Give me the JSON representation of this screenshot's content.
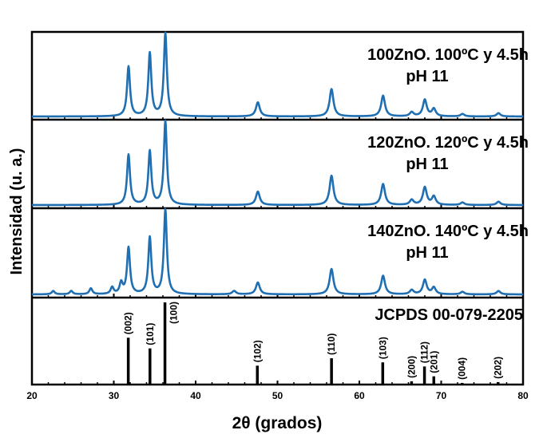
{
  "chart_data": {
    "type": "line",
    "xlabel": "2θ (grados)",
    "ylabel": "Intensidad (u. a.)",
    "xlim": [
      20,
      80
    ],
    "xticks": [
      20,
      30,
      40,
      50,
      60,
      70,
      80
    ],
    "line_color": "#1f6fb2",
    "panels": [
      {
        "title_line1": "100ZnO. 100ºC y 4.5h",
        "title_line2": "pH 11",
        "peaks": [
          {
            "x": 31.8,
            "h": 0.6
          },
          {
            "x": 34.4,
            "h": 0.76
          },
          {
            "x": 36.3,
            "h": 1.0
          },
          {
            "x": 47.6,
            "h": 0.17
          },
          {
            "x": 56.6,
            "h": 0.33
          },
          {
            "x": 62.9,
            "h": 0.25
          },
          {
            "x": 66.4,
            "h": 0.05
          },
          {
            "x": 68.0,
            "h": 0.2
          },
          {
            "x": 69.1,
            "h": 0.09
          },
          {
            "x": 72.6,
            "h": 0.03
          },
          {
            "x": 77.0,
            "h": 0.04
          }
        ]
      },
      {
        "title_line1": "120ZnO. 120ºC y 4.5h",
        "title_line2": "pH 11",
        "peaks": [
          {
            "x": 31.8,
            "h": 0.6
          },
          {
            "x": 34.4,
            "h": 0.64
          },
          {
            "x": 36.3,
            "h": 1.0
          },
          {
            "x": 47.6,
            "h": 0.16
          },
          {
            "x": 56.6,
            "h": 0.35
          },
          {
            "x": 62.9,
            "h": 0.25
          },
          {
            "x": 66.4,
            "h": 0.06
          },
          {
            "x": 68.0,
            "h": 0.21
          },
          {
            "x": 69.1,
            "h": 0.1
          },
          {
            "x": 72.6,
            "h": 0.03
          },
          {
            "x": 77.0,
            "h": 0.04
          }
        ]
      },
      {
        "title_line1": "140ZnO. 140ºC y 4.5h",
        "title_line2": "pH 11",
        "peaks": [
          {
            "x": 22.6,
            "h": 0.04
          },
          {
            "x": 24.8,
            "h": 0.04
          },
          {
            "x": 27.2,
            "h": 0.07
          },
          {
            "x": 29.8,
            "h": 0.08
          },
          {
            "x": 30.9,
            "h": 0.13
          },
          {
            "x": 31.8,
            "h": 0.55
          },
          {
            "x": 34.4,
            "h": 0.67
          },
          {
            "x": 36.3,
            "h": 1.0
          },
          {
            "x": 44.7,
            "h": 0.04
          },
          {
            "x": 47.6,
            "h": 0.14
          },
          {
            "x": 56.6,
            "h": 0.3
          },
          {
            "x": 62.9,
            "h": 0.22
          },
          {
            "x": 66.4,
            "h": 0.05
          },
          {
            "x": 68.0,
            "h": 0.17
          },
          {
            "x": 69.1,
            "h": 0.08
          },
          {
            "x": 72.6,
            "h": 0.03
          },
          {
            "x": 77.0,
            "h": 0.04
          }
        ]
      }
    ],
    "reference": {
      "title": "JCPDS 00-079-2205",
      "peaks": [
        {
          "x": 31.77,
          "h": 0.57,
          "hkl": "(002)"
        },
        {
          "x": 34.42,
          "h": 0.44,
          "hkl": "(101)"
        },
        {
          "x": 36.25,
          "h": 1.0,
          "hkl": "(100)"
        },
        {
          "x": 47.54,
          "h": 0.23,
          "hkl": "(102)"
        },
        {
          "x": 56.6,
          "h": 0.32,
          "hkl": "(110)"
        },
        {
          "x": 62.86,
          "h": 0.27,
          "hkl": "(103)"
        },
        {
          "x": 66.38,
          "h": 0.04,
          "hkl": "(200)"
        },
        {
          "x": 67.96,
          "h": 0.22,
          "hkl": "(112)"
        },
        {
          "x": 69.1,
          "h": 0.1,
          "hkl": "(201)"
        },
        {
          "x": 72.56,
          "h": 0.02,
          "hkl": "(004)"
        },
        {
          "x": 76.95,
          "h": 0.03,
          "hkl": "(202)"
        }
      ]
    }
  }
}
